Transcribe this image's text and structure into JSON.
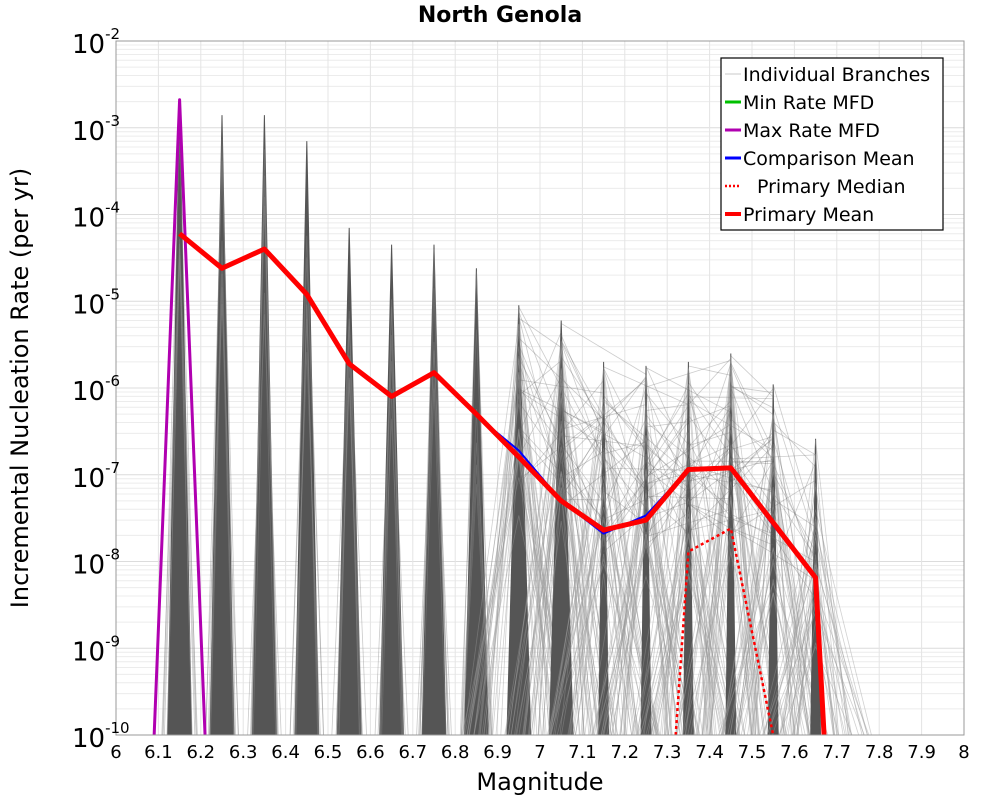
{
  "chart_data": {
    "type": "line",
    "title": "North Genola",
    "xlabel": "Magnitude",
    "ylabel": "Incremental Nucleation Rate (per yr)",
    "xlim": [
      6,
      8
    ],
    "ylim_log10": [
      -10,
      -2
    ],
    "yscale": "log",
    "grid": true,
    "legend_position": "top-right",
    "x_ticks": [
      "6",
      "6.1",
      "6.2",
      "6.3",
      "6.4",
      "6.5",
      "6.6",
      "6.7",
      "6.8",
      "6.9",
      "7",
      "7.1",
      "7.2",
      "7.3",
      "7.4",
      "7.5",
      "7.6",
      "7.7",
      "7.8",
      "7.9",
      "8"
    ],
    "y_ticks": [
      {
        "base": "10",
        "exp": "-2"
      },
      {
        "base": "10",
        "exp": "-3"
      },
      {
        "base": "10",
        "exp": "-4"
      },
      {
        "base": "10",
        "exp": "-5"
      },
      {
        "base": "10",
        "exp": "-6"
      },
      {
        "base": "10",
        "exp": "-7"
      },
      {
        "base": "10",
        "exp": "-8"
      },
      {
        "base": "10",
        "exp": "-9"
      },
      {
        "base": "10",
        "exp": "-10"
      }
    ],
    "legend": [
      {
        "label": "Individual Branches",
        "color": "#c8c8c8",
        "style": "thin"
      },
      {
        "label": "Min Rate MFD",
        "color": "#00c000",
        "style": "solid"
      },
      {
        "label": "Max Rate MFD",
        "color": "#b000b0",
        "style": "solid"
      },
      {
        "label": "Comparison Mean",
        "color": "#0000ff",
        "style": "solid"
      },
      {
        "label": "Primary Median",
        "color": "#ff0000",
        "style": "dotted"
      },
      {
        "label": "Primary Mean",
        "color": "#ff0000",
        "style": "thick"
      }
    ],
    "spike_bins": [
      {
        "m": 6.15,
        "peak": 0.002
      },
      {
        "m": 6.25,
        "peak": 0.0014
      },
      {
        "m": 6.35,
        "peak": 0.0014
      },
      {
        "m": 6.45,
        "peak": 0.0007
      },
      {
        "m": 6.55,
        "peak": 7e-05
      },
      {
        "m": 6.65,
        "peak": 4.5e-05
      },
      {
        "m": 6.75,
        "peak": 4.5e-05
      },
      {
        "m": 6.85,
        "peak": 2.4e-05
      },
      {
        "m": 6.95,
        "peak": 9e-06
      },
      {
        "m": 7.05,
        "peak": 6e-06
      },
      {
        "m": 7.15,
        "peak": 2e-06
      },
      {
        "m": 7.25,
        "peak": 1.8e-06
      },
      {
        "m": 7.35,
        "peak": 2e-06
      },
      {
        "m": 7.45,
        "peak": 2.5e-06
      },
      {
        "m": 7.55,
        "peak": 1.1e-06
      },
      {
        "m": 7.65,
        "peak": 2.6e-07
      }
    ],
    "series": [
      {
        "name": "Max Rate MFD",
        "color": "#b000b0",
        "width": 3,
        "dash": "",
        "x": [
          6.09,
          6.15,
          6.21
        ],
        "y": [
          1e-10,
          0.0021,
          1e-10
        ]
      },
      {
        "name": "Comparison Mean",
        "color": "#0000ff",
        "width": 2,
        "dash": "",
        "x": [
          6.85,
          6.95,
          7.05,
          7.15,
          7.25,
          7.35,
          7.45,
          7.55,
          7.65,
          7.67
        ],
        "y": [
          4.8e-07,
          1.9e-07,
          5e-08,
          2.1e-08,
          3.4e-08,
          1.15e-07,
          1.2e-07,
          2.6e-08,
          6.5e-09,
          1e-10
        ]
      },
      {
        "name": "Primary Median",
        "color": "#ff0000",
        "width": 2.5,
        "dash": "3,3",
        "x": [
          7.32,
          7.35,
          7.45,
          7.55
        ],
        "y": [
          1e-10,
          1.3e-08,
          2.4e-08,
          1e-10
        ]
      },
      {
        "name": "Primary Mean",
        "color": "#ff0000",
        "width": 5,
        "dash": "",
        "x": [
          6.15,
          6.25,
          6.35,
          6.45,
          6.55,
          6.65,
          6.75,
          6.85,
          6.95,
          7.05,
          7.15,
          7.25,
          7.35,
          7.45,
          7.55,
          7.65,
          7.67
        ],
        "y": [
          6e-05,
          2.4e-05,
          4e-05,
          1.2e-05,
          1.9e-06,
          8e-07,
          1.5e-06,
          5e-07,
          1.6e-07,
          5e-08,
          2.3e-08,
          3e-08,
          1.15e-07,
          1.2e-07,
          2.8e-08,
          6.5e-09,
          1e-10
        ]
      }
    ]
  }
}
